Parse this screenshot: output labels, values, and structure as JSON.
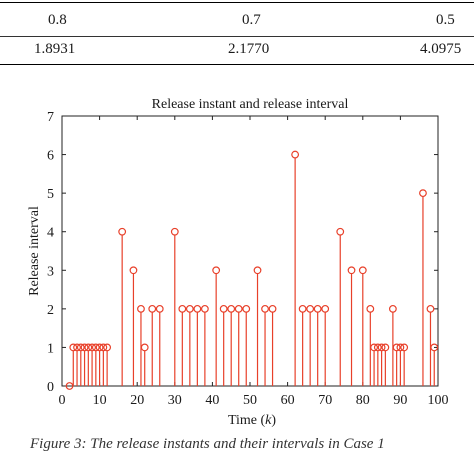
{
  "table": {
    "clipped_header": "",
    "row1": [
      "0.8",
      "0.7",
      "0.5"
    ],
    "row2": [
      "1.8931",
      "2.1770",
      "4.0975"
    ]
  },
  "caption": "Figure 3: The release instants and their intervals in Case 1",
  "chart_data": {
    "type": "stem",
    "title": "Release instant and release interval",
    "xlabel": "Time (k)",
    "ylabel": "Release interval",
    "xlim": [
      0,
      100
    ],
    "ylim": [
      0,
      7
    ],
    "xticks": [
      0,
      10,
      20,
      30,
      40,
      50,
      60,
      70,
      80,
      90,
      100
    ],
    "yticks": [
      0,
      1,
      2,
      3,
      4,
      5,
      6,
      7
    ],
    "grid": false,
    "color": "#e8402a",
    "x": [
      2,
      3,
      4,
      5,
      6,
      7,
      8,
      9,
      10,
      11,
      12,
      16,
      19,
      21,
      22,
      24,
      26,
      30,
      32,
      34,
      36,
      38,
      41,
      43,
      45,
      47,
      49,
      52,
      54,
      56,
      62,
      64,
      66,
      68,
      70,
      74,
      77,
      80,
      82,
      83,
      84,
      85,
      86,
      88,
      89,
      90,
      91,
      96,
      98,
      99
    ],
    "y": [
      0,
      1,
      1,
      1,
      1,
      1,
      1,
      1,
      1,
      1,
      1,
      4,
      3,
      2,
      1,
      2,
      2,
      4,
      2,
      2,
      2,
      2,
      3,
      2,
      2,
      2,
      2,
      3,
      2,
      2,
      6,
      2,
      2,
      2,
      2,
      4,
      3,
      3,
      2,
      1,
      1,
      1,
      1,
      2,
      1,
      1,
      1,
      5,
      2,
      1
    ]
  }
}
